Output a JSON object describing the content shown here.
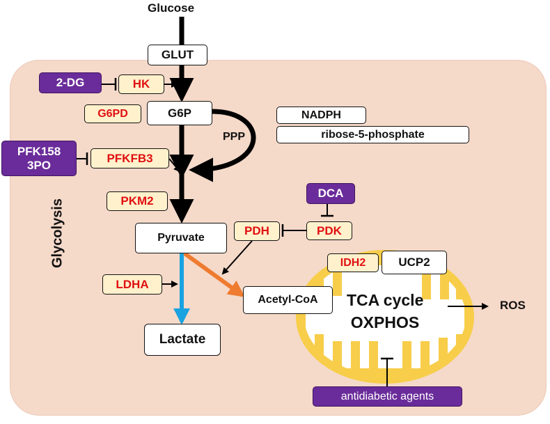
{
  "diagram": {
    "glucose": "Glucose",
    "glut": "GLUT",
    "hk": "HK",
    "two_dg": "2-DG",
    "g6pd": "G6PD",
    "g6p": "G6P",
    "ppp": "PPP",
    "nadph": "NADPH",
    "ribose": "ribose-5-phosphate",
    "pfk158_line1": "PFK158",
    "pfk158_line2": "3PO",
    "pfkfb3": "PFKFB3",
    "glycolysis": "Glycolysis",
    "pkm2": "PKM2",
    "dca": "DCA",
    "pdk": "PDK",
    "pdh": "PDH",
    "pyruvate": "Pyruvate",
    "idh2": "IDH2",
    "ucp2": "UCP2",
    "ldha": "LDHA",
    "acetyl_coa": "Acetyl-CoA",
    "tca_line1": "TCA cycle",
    "tca_line2": "OXPHOS",
    "ros": "ROS",
    "lactate": "Lactate",
    "antidiabetic": "antidiabetic agents"
  },
  "colors": {
    "cell_fill": "#f5d9c9",
    "enzyme_fill": "#fff1cc",
    "enzyme_text": "#e01010",
    "drug_fill": "#6a2c9a",
    "mitochondrion": "#f7cd4a",
    "lactate_arrow": "#1aa3e0",
    "acetyl_arrow": "#ee7b2f"
  }
}
